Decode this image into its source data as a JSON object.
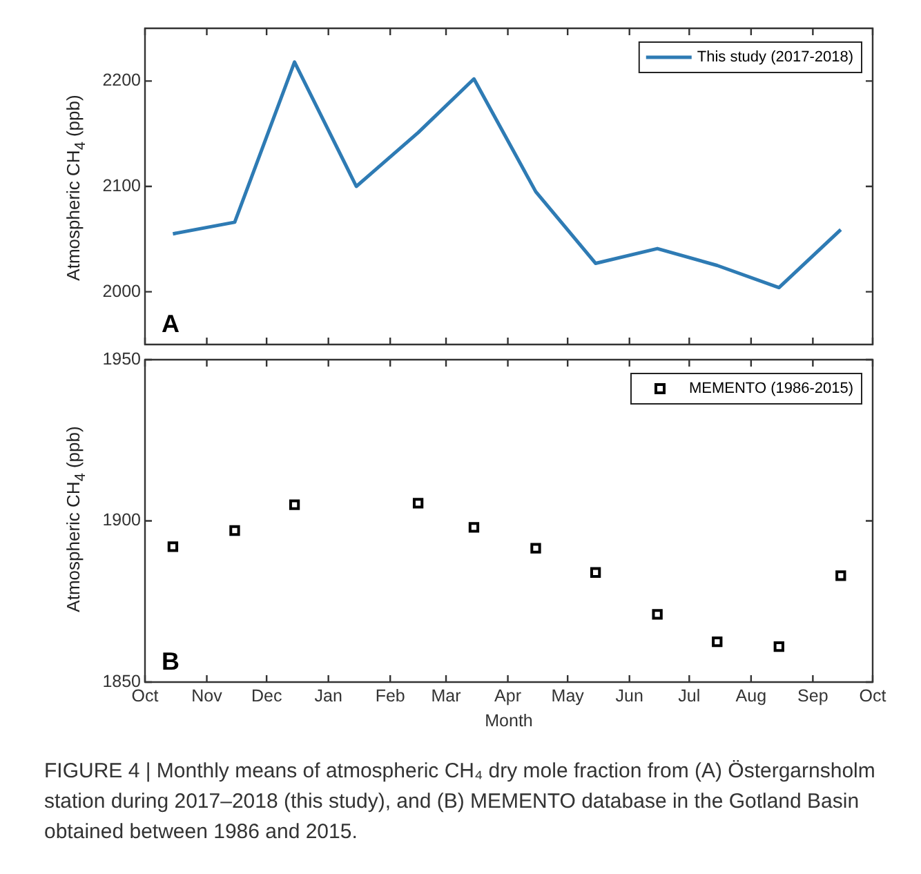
{
  "chart_data": [
    {
      "type": "line",
      "ylabel": "Atmospheric CH$_{4}$ (ppb)",
      "x": [
        "2017-10-15",
        "2017-11-15",
        "2017-12-15",
        "2018-01-15",
        "2018-02-15",
        "2018-03-15",
        "2018-04-15",
        "2018-05-15",
        "2018-06-15",
        "2018-07-15",
        "2018-08-15",
        "2018-09-15"
      ],
      "series": [
        {
          "name": "This study (2017-2018)",
          "color": "#2e7bb4",
          "values": [
            2055,
            2066,
            2218,
            2100,
            2151,
            2202,
            2095,
            2027,
            2041,
            2025,
            2004,
            2059
          ]
        }
      ],
      "xlim": [
        "2017-10-01",
        "2018-10-01"
      ],
      "xticks": [
        {
          "value": "2017-10-01",
          "label": null
        },
        {
          "value": "2017-11-01",
          "label": null
        },
        {
          "value": "2017-12-01",
          "label": null
        },
        {
          "value": "2018-01-01",
          "label": null
        },
        {
          "value": "2018-02-01",
          "label": null
        },
        {
          "value": "2018-03-01",
          "label": null
        },
        {
          "value": "2018-04-01",
          "label": null
        },
        {
          "value": "2018-05-01",
          "label": null
        },
        {
          "value": "2018-06-01",
          "label": null
        },
        {
          "value": "2018-07-01",
          "label": null
        },
        {
          "value": "2018-08-01",
          "label": null
        },
        {
          "value": "2018-09-01",
          "label": null
        },
        {
          "value": "2018-10-01",
          "label": null
        }
      ],
      "ylim": [
        1950,
        2250
      ],
      "yticks": [
        2000,
        2100,
        2200
      ],
      "tick_labels": "y",
      "grid": false,
      "legend": "top right",
      "marker": "none",
      "line_style": "solid",
      "annotations": [
        "A"
      ]
    },
    {
      "type": "scatter",
      "ylabel": "Atmospheric CH$_{4}$ (ppb)",
      "xlabel": "Month",
      "x": [
        "2017-10-15",
        "2017-11-15",
        "2017-12-15",
        "2018-01-15",
        "2018-02-15",
        "2018-03-15",
        "2018-04-15",
        "2018-05-15",
        "2018-06-15",
        "2018-07-15",
        "2018-08-15",
        "2018-09-15"
      ],
      "series": [
        {
          "name": "MEMENTO (1986-2015)",
          "color": "#000000",
          "values": [
            1892,
            1897,
            1905,
            null,
            1905.5,
            1898,
            1891.5,
            1884,
            1871,
            1862.5,
            1861,
            1883
          ]
        }
      ],
      "xlim": [
        "2017-10-01",
        "2018-10-01"
      ],
      "xticks": [
        {
          "value": "2017-10-01",
          "label": "Oct"
        },
        {
          "value": "2017-11-01",
          "label": "Nov"
        },
        {
          "value": "2017-12-01",
          "label": "Dec"
        },
        {
          "value": "2018-01-01",
          "label": "Jan"
        },
        {
          "value": "2018-02-01",
          "label": "Feb"
        },
        {
          "value": "2018-03-01",
          "label": "Mar"
        },
        {
          "value": "2018-04-01",
          "label": "Apr"
        },
        {
          "value": "2018-05-01",
          "label": "May"
        },
        {
          "value": "2018-06-01",
          "label": "Jun"
        },
        {
          "value": "2018-07-01",
          "label": "Jul"
        },
        {
          "value": "2018-08-01",
          "label": "Aug"
        },
        {
          "value": "2018-09-01",
          "label": "Sep"
        },
        {
          "value": "2018-10-01",
          "label": "Oct"
        }
      ],
      "ylim": [
        1850,
        1950
      ],
      "yticks": [
        1850,
        1900,
        1950
      ],
      "grid": false,
      "legend": "top right",
      "marker": "square",
      "annotations": [
        "B",
        "FIGURE 4 | Monthly means of atmospheric CH₄ dry mole fraction from (A) Östergarnsholm station during 2017–2018 (this study), and (B) MEMENTO database in the Gotland Basin obtained between 1986 and 2015."
      ]
    }
  ]
}
